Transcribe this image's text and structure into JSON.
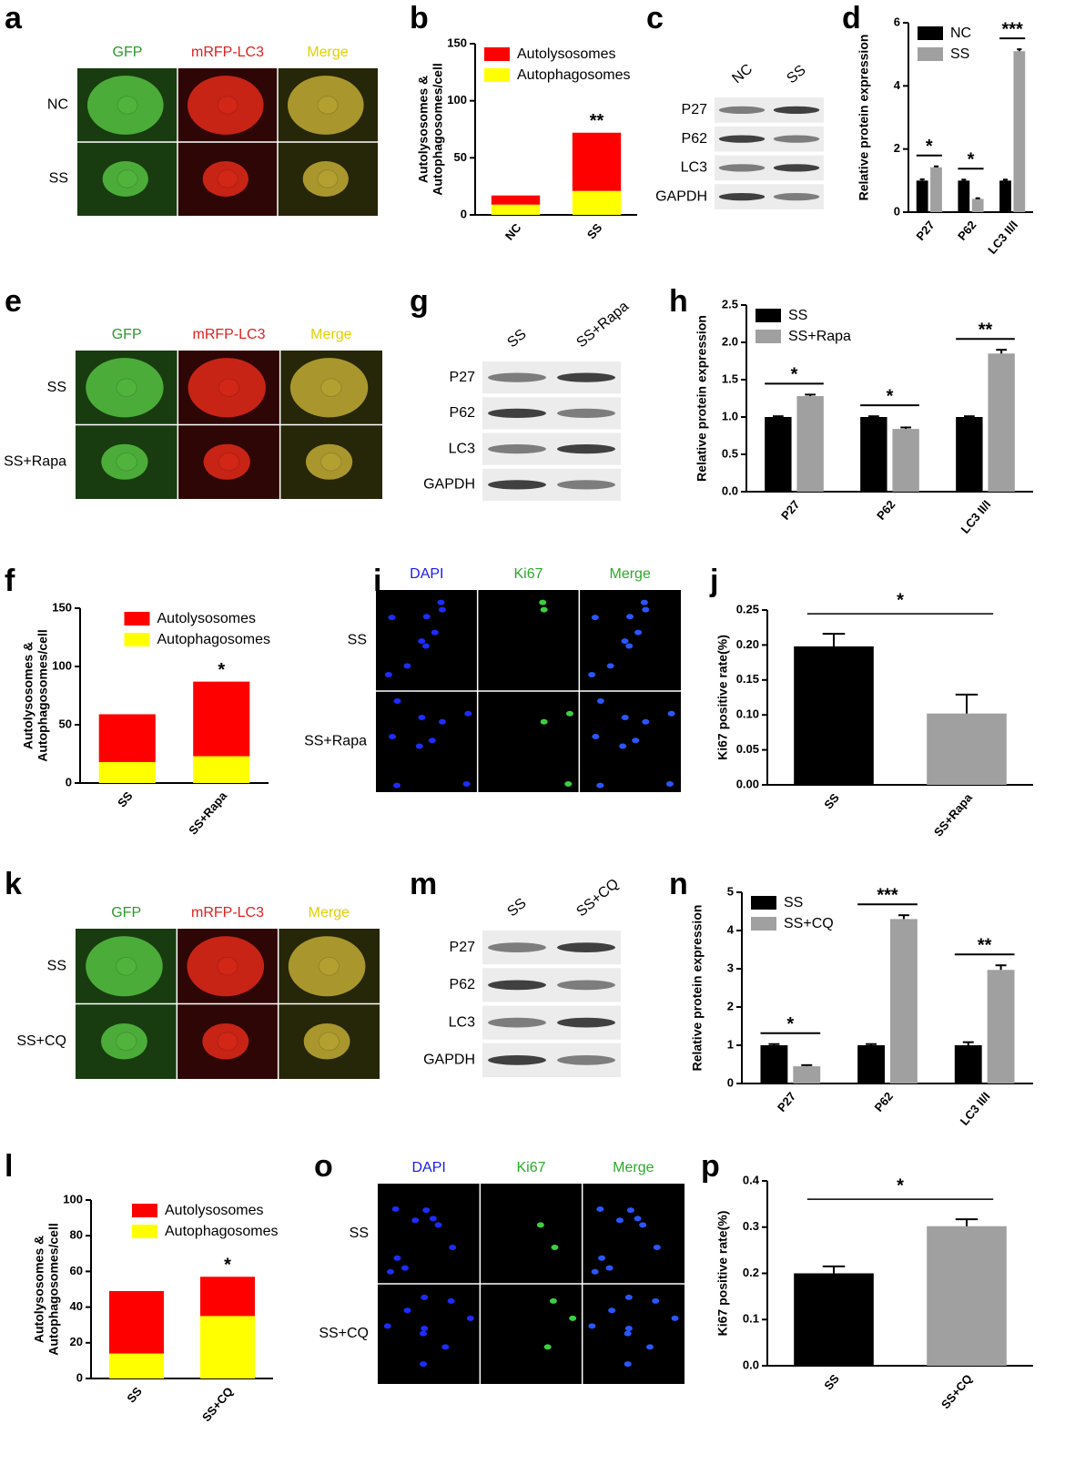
{
  "micrographs": [
    {
      "letter": "a",
      "columns": [
        "GFP",
        "mRFP-LC3",
        "Merge"
      ],
      "rows": [
        "NC",
        "SS"
      ]
    },
    {
      "letter": "e",
      "columns": [
        "GFP",
        "mRFP-LC3",
        "Merge"
      ],
      "rows": [
        "SS",
        "SS+Rapa"
      ]
    },
    {
      "letter": "i",
      "columns": [
        "DAPI",
        "Ki67",
        "Merge"
      ],
      "rows": [
        "SS",
        "SS+Rapa"
      ]
    },
    {
      "letter": "k",
      "columns": [
        "GFP",
        "mRFP-LC3",
        "Merge"
      ],
      "rows": [
        "SS",
        "SS+CQ"
      ]
    },
    {
      "letter": "o",
      "columns": [
        "DAPI",
        "Ki67",
        "Merge"
      ],
      "rows": [
        "SS",
        "SS+CQ"
      ]
    }
  ],
  "blots": [
    {
      "letter": "c",
      "lanes": [
        "NC",
        "SS"
      ],
      "rows": [
        "P27",
        "P62",
        "LC3",
        "GAPDH"
      ]
    },
    {
      "letter": "g",
      "lanes": [
        "SS",
        "SS+Rapa"
      ],
      "rows": [
        "P27",
        "P62",
        "LC3",
        "GAPDH"
      ]
    },
    {
      "letter": "m",
      "lanes": [
        "SS",
        "SS+CQ"
      ],
      "rows": [
        "P27",
        "P62",
        "LC3",
        "GAPDH"
      ]
    }
  ],
  "chart_data": [
    {
      "letter": "b",
      "type": "bar",
      "stacked": true,
      "ylabel": [
        "Autolysosomes &",
        "Autophagosomes/cell"
      ],
      "categories": [
        "NC",
        "SS"
      ],
      "series": [
        {
          "name": "Autolysosomes",
          "color": "#ff0000",
          "values": [
            8,
            51
          ]
        },
        {
          "name": "Autophagosomes",
          "color": "#ffff00",
          "values": [
            9,
            21
          ]
        }
      ],
      "annotations": [
        null,
        "**"
      ],
      "ylim": [
        0,
        150
      ],
      "yticks": [
        0,
        50,
        100,
        150
      ],
      "legend": "upper left"
    },
    {
      "letter": "d",
      "type": "bar",
      "ylabel": "Relative protein expression",
      "categories": [
        "P27",
        "P62",
        "LC3 II/I"
      ],
      "series": [
        {
          "name": "NC",
          "color": "#000000",
          "values": [
            1,
            1,
            1
          ],
          "errors": [
            0.04,
            0.03,
            0.03
          ]
        },
        {
          "name": "SS",
          "color": "#a0a0a0",
          "values": [
            1.42,
            0.42,
            5.1
          ],
          "errors": [
            0.03,
            0.02,
            0.06
          ]
        }
      ],
      "annotations": [
        "*",
        "*",
        "***"
      ],
      "ylim": [
        0,
        6
      ],
      "yticks": [
        0,
        2,
        4,
        6
      ],
      "legend": "upper left"
    },
    {
      "letter": "h",
      "type": "bar",
      "ylabel": "Relative protein expression",
      "categories": [
        "P27",
        "P62",
        "LC3 II/I"
      ],
      "series": [
        {
          "name": "SS",
          "color": "#000000",
          "values": [
            1,
            1,
            1
          ],
          "errors": [
            0.01,
            0.01,
            0.01
          ]
        },
        {
          "name": "SS+Rapa",
          "color": "#a0a0a0",
          "values": [
            1.28,
            0.84,
            1.85
          ],
          "errors": [
            0.02,
            0.02,
            0.05
          ]
        }
      ],
      "annotations": [
        "*",
        "*",
        "**"
      ],
      "ylim": [
        0,
        2.5
      ],
      "yticks": [
        {
          "value": 0,
          "label": "0.0"
        },
        {
          "value": 0.5,
          "label": "0.5"
        },
        {
          "value": 1,
          "label": "1.0"
        },
        {
          "value": 1.5,
          "label": "1.5"
        },
        {
          "value": 2,
          "label": "2.0"
        },
        {
          "value": 2.5,
          "label": "2.5"
        }
      ],
      "legend": "upper left"
    },
    {
      "letter": "f",
      "type": "bar",
      "stacked": true,
      "ylabel": [
        "Autolysosomes &",
        "Autophagosomes/cell"
      ],
      "categories": [
        "SS",
        "SS+Rapa"
      ],
      "series": [
        {
          "name": "Autolysosomes",
          "color": "#ff0000",
          "values": [
            41,
            64
          ]
        },
        {
          "name": "Autophagosomes",
          "color": "#ffff00",
          "values": [
            18,
            23
          ]
        }
      ],
      "annotations": [
        null,
        "*"
      ],
      "ylim": [
        0,
        150
      ],
      "yticks": [
        0,
        50,
        100,
        150
      ],
      "legend": "upper center"
    },
    {
      "letter": "j",
      "type": "bar",
      "ylabel": "Ki67 positive rate(%)",
      "categories": [
        "SS",
        "SS+Rapa"
      ],
      "values": [
        0.198,
        0.102
      ],
      "errors": [
        0.018,
        0.027
      ],
      "colors": [
        "#000000",
        "#a0a0a0"
      ],
      "annotation": "*",
      "ylim": [
        0,
        0.25
      ],
      "yticks": [
        {
          "value": 0,
          "label": "0.00"
        },
        {
          "value": 0.05,
          "label": "0.05"
        },
        {
          "value": 0.1,
          "label": "0.10"
        },
        {
          "value": 0.15,
          "label": "0.15"
        },
        {
          "value": 0.2,
          "label": "0.20"
        },
        {
          "value": 0.25,
          "label": "0.25"
        }
      ]
    },
    {
      "letter": "n",
      "type": "bar",
      "ylabel": "Relative protein expression",
      "categories": [
        "P27",
        "P62",
        "LC3 II/I"
      ],
      "series": [
        {
          "name": "SS",
          "color": "#000000",
          "values": [
            1,
            1,
            1
          ],
          "errors": [
            0.03,
            0.03,
            0.08
          ]
        },
        {
          "name": "SS+CQ",
          "color": "#a0a0a0",
          "values": [
            0.45,
            4.3,
            2.97
          ],
          "errors": [
            0.03,
            0.1,
            0.12
          ]
        }
      ],
      "annotations": [
        "*",
        "***",
        "**"
      ],
      "ylim": [
        0,
        5
      ],
      "yticks": [
        0,
        1,
        2,
        3,
        4,
        5
      ],
      "legend": "upper left"
    },
    {
      "letter": "l",
      "type": "bar",
      "stacked": true,
      "ylabel": [
        "Autolysosomes &",
        "Autophagosomes/cell"
      ],
      "categories": [
        "SS",
        "SS+CQ"
      ],
      "series": [
        {
          "name": "Autolysosomes",
          "color": "#ff0000",
          "values": [
            35,
            22
          ]
        },
        {
          "name": "Autophagosomes",
          "color": "#ffff00",
          "values": [
            14,
            35
          ]
        }
      ],
      "annotations": [
        null,
        "*"
      ],
      "ylim": [
        0,
        100
      ],
      "yticks": [
        0,
        20,
        40,
        60,
        80,
        100
      ],
      "legend": "upper center"
    },
    {
      "letter": "p",
      "type": "bar",
      "ylabel": "Ki67 positive rate(%)",
      "categories": [
        "SS",
        "SS+CQ"
      ],
      "values": [
        0.2,
        0.302
      ],
      "errors": [
        0.015,
        0.015
      ],
      "colors": [
        "#000000",
        "#a0a0a0"
      ],
      "annotation": "*",
      "ylim": [
        0,
        0.4
      ],
      "yticks": [
        {
          "value": 0,
          "label": "0.0"
        },
        {
          "value": 0.1,
          "label": "0.1"
        },
        {
          "value": 0.2,
          "label": "0.2"
        },
        {
          "value": 0.3,
          "label": "0.3"
        },
        {
          "value": 0.4,
          "label": "0.4"
        }
      ]
    }
  ]
}
